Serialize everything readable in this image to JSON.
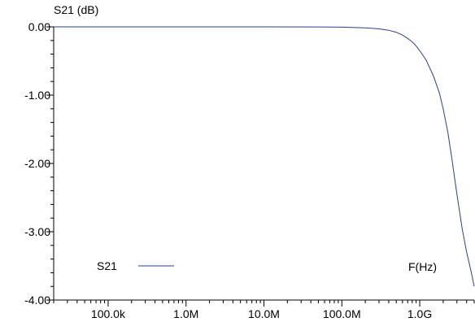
{
  "colors": {
    "series": "#2a3f8f",
    "axis": "#000000",
    "background": "#ffffff"
  },
  "chart_data": {
    "type": "line",
    "title": "",
    "ylabel": "S21 (dB)",
    "xlabel": "F(Hz)",
    "x_scale": "log",
    "xlim": [
      20000,
      5000000000
    ],
    "ylim": [
      -4.0,
      0.0
    ],
    "y_ticks": [
      0.0,
      -1.0,
      -2.0,
      -3.0,
      -4.0
    ],
    "y_tick_labels": [
      "0.00",
      "-1.00",
      "-2.00",
      "-3.00",
      "-4.00"
    ],
    "x_ticks": [
      100000,
      1000000,
      10000000,
      100000000,
      1000000000
    ],
    "x_tick_labels": [
      "100.0k",
      "1.0M",
      "10.0M",
      "100.0M",
      "1.0G"
    ],
    "grid": false,
    "legend": {
      "placement": "bottom-left",
      "entries": [
        {
          "name": "S21"
        }
      ]
    },
    "series": [
      {
        "name": "S21",
        "x": [
          20000,
          100000,
          1000000,
          10000000,
          50000000,
          100000000,
          200000000,
          300000000,
          400000000,
          500000000,
          600000000,
          700000000,
          800000000,
          900000000,
          1000000000,
          1200000000,
          1500000000,
          1800000000,
          2000000000,
          2300000000,
          2600000000,
          3000000000,
          3500000000,
          4000000000,
          4500000000,
          5000000000
        ],
        "y": [
          0.0,
          0.0,
          0.0,
          0.0,
          -0.002,
          -0.005,
          -0.015,
          -0.03,
          -0.05,
          -0.08,
          -0.12,
          -0.17,
          -0.22,
          -0.28,
          -0.35,
          -0.48,
          -0.72,
          -0.98,
          -1.2,
          -1.55,
          -1.95,
          -2.45,
          -2.95,
          -3.3,
          -3.55,
          -3.8
        ]
      }
    ]
  }
}
